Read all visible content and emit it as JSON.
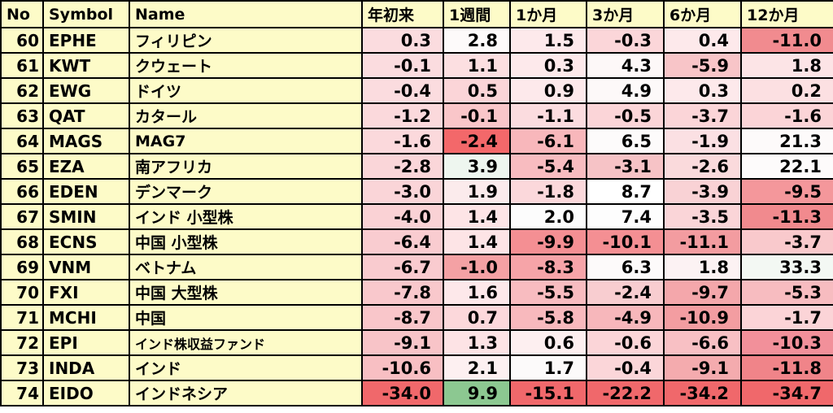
{
  "headers": [
    "No",
    "Symbol",
    "Name",
    "年初来",
    "1週間",
    "1か月",
    "3か月",
    "6か月",
    "12か月"
  ],
  "rows": [
    {
      "no": "60",
      "symbol": "EPHE",
      "name": "フィリピン",
      "values": [
        "0.3",
        "2.8",
        "1.5",
        "-0.3",
        "0.4",
        "-11.0"
      ],
      "colors": [
        "#fbdcdf",
        "#fdfafa",
        "#fde9eb",
        "#fbd6d9",
        "#fde9eb",
        "#f18b8f"
      ]
    },
    {
      "no": "61",
      "symbol": "KWT",
      "name": "クウェート",
      "values": [
        "-0.1",
        "1.1",
        "0.3",
        "4.3",
        "-5.9",
        "1.8"
      ],
      "colors": [
        "#fbdcdf",
        "#fcdfe1",
        "#fde9eb",
        "#fdf8f8",
        "#f8c5c8",
        "#fce4e6"
      ]
    },
    {
      "no": "62",
      "symbol": "EWG",
      "name": "ドイツ",
      "values": [
        "-0.4",
        "0.5",
        "0.9",
        "4.9",
        "0.3",
        "0.2"
      ],
      "colors": [
        "#fbdcdf",
        "#fbd5d8",
        "#fde9eb",
        "#fdf9f9",
        "#fde9eb",
        "#fce0e2"
      ]
    },
    {
      "no": "63",
      "symbol": "QAT",
      "name": "カタール",
      "values": [
        "-1.2",
        "-0.1",
        "-1.1",
        "-0.5",
        "-3.7",
        "-1.6"
      ],
      "colors": [
        "#fbd9dc",
        "#f9c6c9",
        "#fbdcdf",
        "#fbd5d8",
        "#fbd5d8",
        "#fbd4d7"
      ]
    },
    {
      "no": "64",
      "symbol": "MAGS",
      "name": "MAG7",
      "values": [
        "-1.6",
        "-2.4",
        "-6.1",
        "6.5",
        "-1.9",
        "21.3"
      ],
      "colors": [
        "#fbd9dc",
        "#f3686a",
        "#f8b7bb",
        "#fdfbfb",
        "#fbe0e3",
        "#fdfafa"
      ]
    },
    {
      "no": "65",
      "symbol": "EZA",
      "name": "南アフリカ",
      "values": [
        "-2.8",
        "3.9",
        "-5.4",
        "-3.1",
        "-2.6",
        "22.1"
      ],
      "colors": [
        "#fad6d9",
        "#eef6ef",
        "#f8bcc0",
        "#f6c3c6",
        "#fadadc",
        "#fdfbfb"
      ]
    },
    {
      "no": "66",
      "symbol": "EDEN",
      "name": "デンマーク",
      "values": [
        "-3.0",
        "1.9",
        "-1.8",
        "8.7",
        "-3.9",
        "-9.5"
      ],
      "colors": [
        "#fad5d8",
        "#fbebec",
        "#fbd8db",
        "#ffffff",
        "#f9d2d5",
        "#f4979b"
      ]
    },
    {
      "no": "67",
      "symbol": "SMIN",
      "name": "インド 小型株",
      "values": [
        "-4.0",
        "1.4",
        "2.0",
        "7.4",
        "-3.5",
        "-11.3"
      ],
      "colors": [
        "#fad2d5",
        "#fde4e6",
        "#fcfcfc",
        "#fdfdfd",
        "#fad5d8",
        "#f18a8e"
      ]
    },
    {
      "no": "68",
      "symbol": "ECNS",
      "name": "中国 小型株",
      "values": [
        "-6.4",
        "1.4",
        "-9.9",
        "-10.1",
        "-11.1",
        "-3.7"
      ],
      "colors": [
        "#f9ccd0",
        "#fde4e6",
        "#f48f93",
        "#f48f93",
        "#f39ca0",
        "#f9c9cc"
      ]
    },
    {
      "no": "69",
      "symbol": "VNM",
      "name": "ベトナム",
      "values": [
        "-6.7",
        "-1.0",
        "-8.3",
        "6.3",
        "1.8",
        "33.3"
      ],
      "colors": [
        "#f9cbcf",
        "#f4a1a4",
        "#f6a4a8",
        "#fdfafa",
        "#fcf2f3",
        "#f3f8f3"
      ]
    },
    {
      "no": "70",
      "symbol": "FXI",
      "name": "中国 大型株",
      "values": [
        "-7.8",
        "1.6",
        "-5.5",
        "-2.4",
        "-9.7",
        "-5.3"
      ],
      "colors": [
        "#f9c8cc",
        "#fde8ea",
        "#f8bcc0",
        "#f8cdd0",
        "#f4a7ab",
        "#f7bcc0"
      ]
    },
    {
      "no": "71",
      "symbol": "MCHI",
      "name": "中国",
      "values": [
        "-8.7",
        "0.7",
        "-5.8",
        "-4.9",
        "-10.9",
        "-1.7"
      ],
      "colors": [
        "#f9c6ca",
        "#fcd8db",
        "#f8b9bd",
        "#f7b7bb",
        "#f39da1",
        "#fbd4d7"
      ]
    },
    {
      "no": "72",
      "symbol": "EPI",
      "name": "インド株収益ファンド",
      "values": [
        "-9.1",
        "1.3",
        "0.6",
        "-0.6",
        "-6.6",
        "-10.3"
      ],
      "colors": [
        "#f8c4c8",
        "#fde3e5",
        "#fdeff0",
        "#fbd5d8",
        "#f8c0c4",
        "#f2909a"
      ]
    },
    {
      "no": "73",
      "symbol": "INDA",
      "name": "インド",
      "values": [
        "-10.6",
        "2.1",
        "1.7",
        "-0.4",
        "-9.1",
        "-11.8"
      ],
      "colors": [
        "#f8bfc3",
        "#fdf0f1",
        "#fcfafa",
        "#fbd6d9",
        "#f4abae",
        "#f08489"
      ]
    },
    {
      "no": "74",
      "symbol": "EIDO",
      "name": "インドネシア",
      "values": [
        "-34.0",
        "9.9",
        "-15.1",
        "-22.2",
        "-34.2",
        "-34.7"
      ],
      "colors": [
        "#f0686b",
        "#8cc891",
        "#f0686b",
        "#f0686b",
        "#f0686b",
        "#f0686b"
      ]
    }
  ]
}
